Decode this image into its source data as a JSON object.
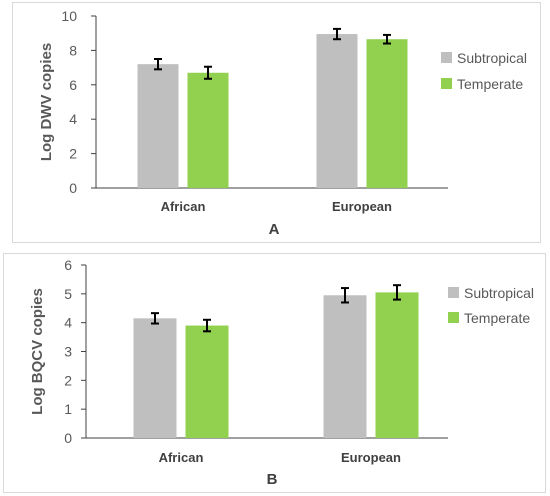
{
  "chart_data": [
    {
      "type": "bar",
      "panel_label": "A",
      "ylabel": "Log  DWV copies",
      "xlabel": "",
      "categories": [
        "African",
        "European"
      ],
      "series": [
        {
          "name": "Subtropical",
          "values": [
            7.2,
            8.95
          ],
          "errors": [
            0.3,
            0.3
          ],
          "color": "#bfbfbf"
        },
        {
          "name": "Temperate",
          "values": [
            6.7,
            8.65
          ],
          "errors": [
            0.35,
            0.25
          ],
          "color": "#92d050"
        }
      ],
      "ylim": [
        0,
        10
      ],
      "yticks": [
        0,
        2,
        4,
        6,
        8,
        10
      ],
      "grid": false,
      "legend": "right"
    },
    {
      "type": "bar",
      "panel_label": "B",
      "ylabel": "Log BQCV copies",
      "xlabel": "",
      "categories": [
        "African",
        "European"
      ],
      "series": [
        {
          "name": "Subtropical",
          "values": [
            4.15,
            4.95
          ],
          "errors": [
            0.18,
            0.25
          ],
          "color": "#bfbfbf"
        },
        {
          "name": "Temperate",
          "values": [
            3.9,
            5.05
          ],
          "errors": [
            0.2,
            0.25
          ],
          "color": "#92d050"
        }
      ],
      "ylim": [
        0,
        6
      ],
      "yticks": [
        0,
        1,
        2,
        3,
        4,
        5,
        6
      ],
      "grid": false,
      "legend": "right"
    }
  ]
}
